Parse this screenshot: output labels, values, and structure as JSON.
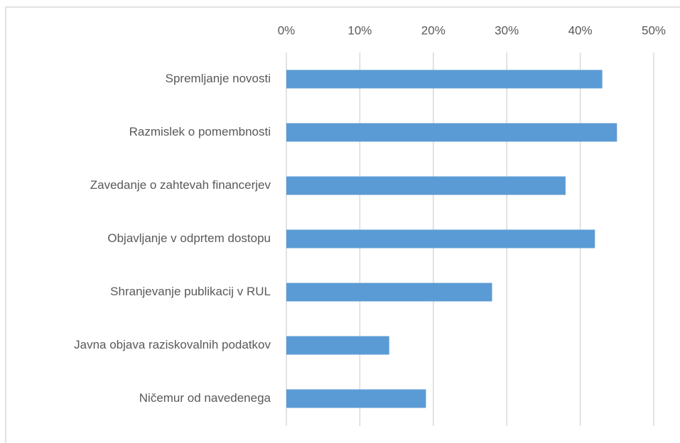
{
  "chart_data": {
    "type": "bar",
    "orientation": "horizontal",
    "categories": [
      "Spremljanje novosti",
      "Razmislek o pomembnosti",
      "Zavedanje o zahtevah financerjev",
      "Objavljanje v odprtem dostopu",
      "Shranjevanje publikacij v RUL",
      "Javna objava raziskovalnih podatkov",
      "Ničemur od navedenega"
    ],
    "values": [
      43,
      45,
      38,
      42,
      28,
      14,
      19
    ],
    "color": "#5b9bd5",
    "xlim": [
      0,
      50
    ],
    "xticks": [
      {
        "value": 0,
        "label": "0%"
      },
      {
        "value": 10,
        "label": "10%"
      },
      {
        "value": 20,
        "label": "20%"
      },
      {
        "value": 30,
        "label": "30%"
      },
      {
        "value": 40,
        "label": "40%"
      },
      {
        "value": 50,
        "label": "50%"
      }
    ],
    "grid": true
  }
}
